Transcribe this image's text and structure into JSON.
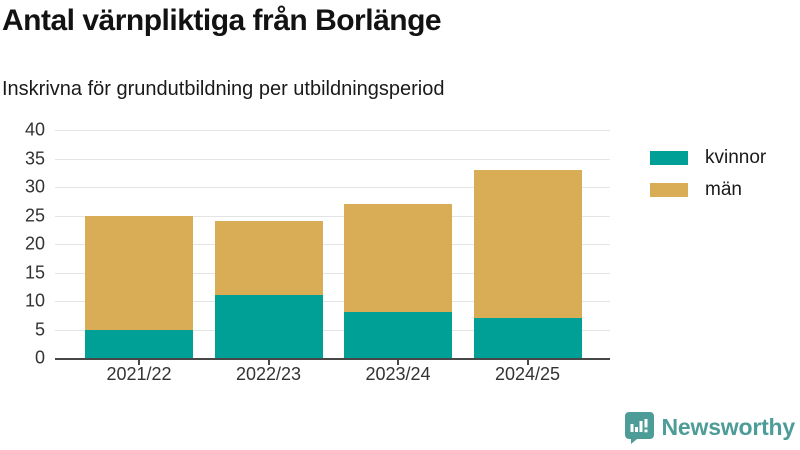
{
  "header": {
    "title": "Antal värnpliktiga från Borlänge",
    "subtitle": "Inskrivna för grundutbildning per utbildningsperiod"
  },
  "chart_data": {
    "type": "bar",
    "stacked": true,
    "title": "Antal värnpliktiga från Borlänge",
    "subtitle": "Inskrivna för grundutbildning per utbildningsperiod",
    "categories": [
      "2021/22",
      "2022/23",
      "2023/24",
      "2024/25"
    ],
    "series": [
      {
        "name": "kvinnor",
        "color": "#00a096",
        "values": [
          5,
          11,
          8,
          7
        ]
      },
      {
        "name": "män",
        "color": "#d9ad55",
        "values": [
          20,
          13,
          19,
          26
        ]
      }
    ],
    "stack_totals": [
      25,
      24,
      27,
      33
    ],
    "xlabel": "",
    "ylabel": "",
    "ylim": [
      0,
      40
    ],
    "yticks": [
      0,
      5,
      10,
      15,
      20,
      25,
      30,
      35,
      40
    ],
    "grid": true,
    "legend_position": "right-top",
    "axis_color": "#474747",
    "grid_color": "#e4e4e4"
  },
  "branding": {
    "name": "Newsworthy",
    "color": "#4d9c98",
    "logo_icon": "bar-chart-speech-bubble-icon"
  }
}
